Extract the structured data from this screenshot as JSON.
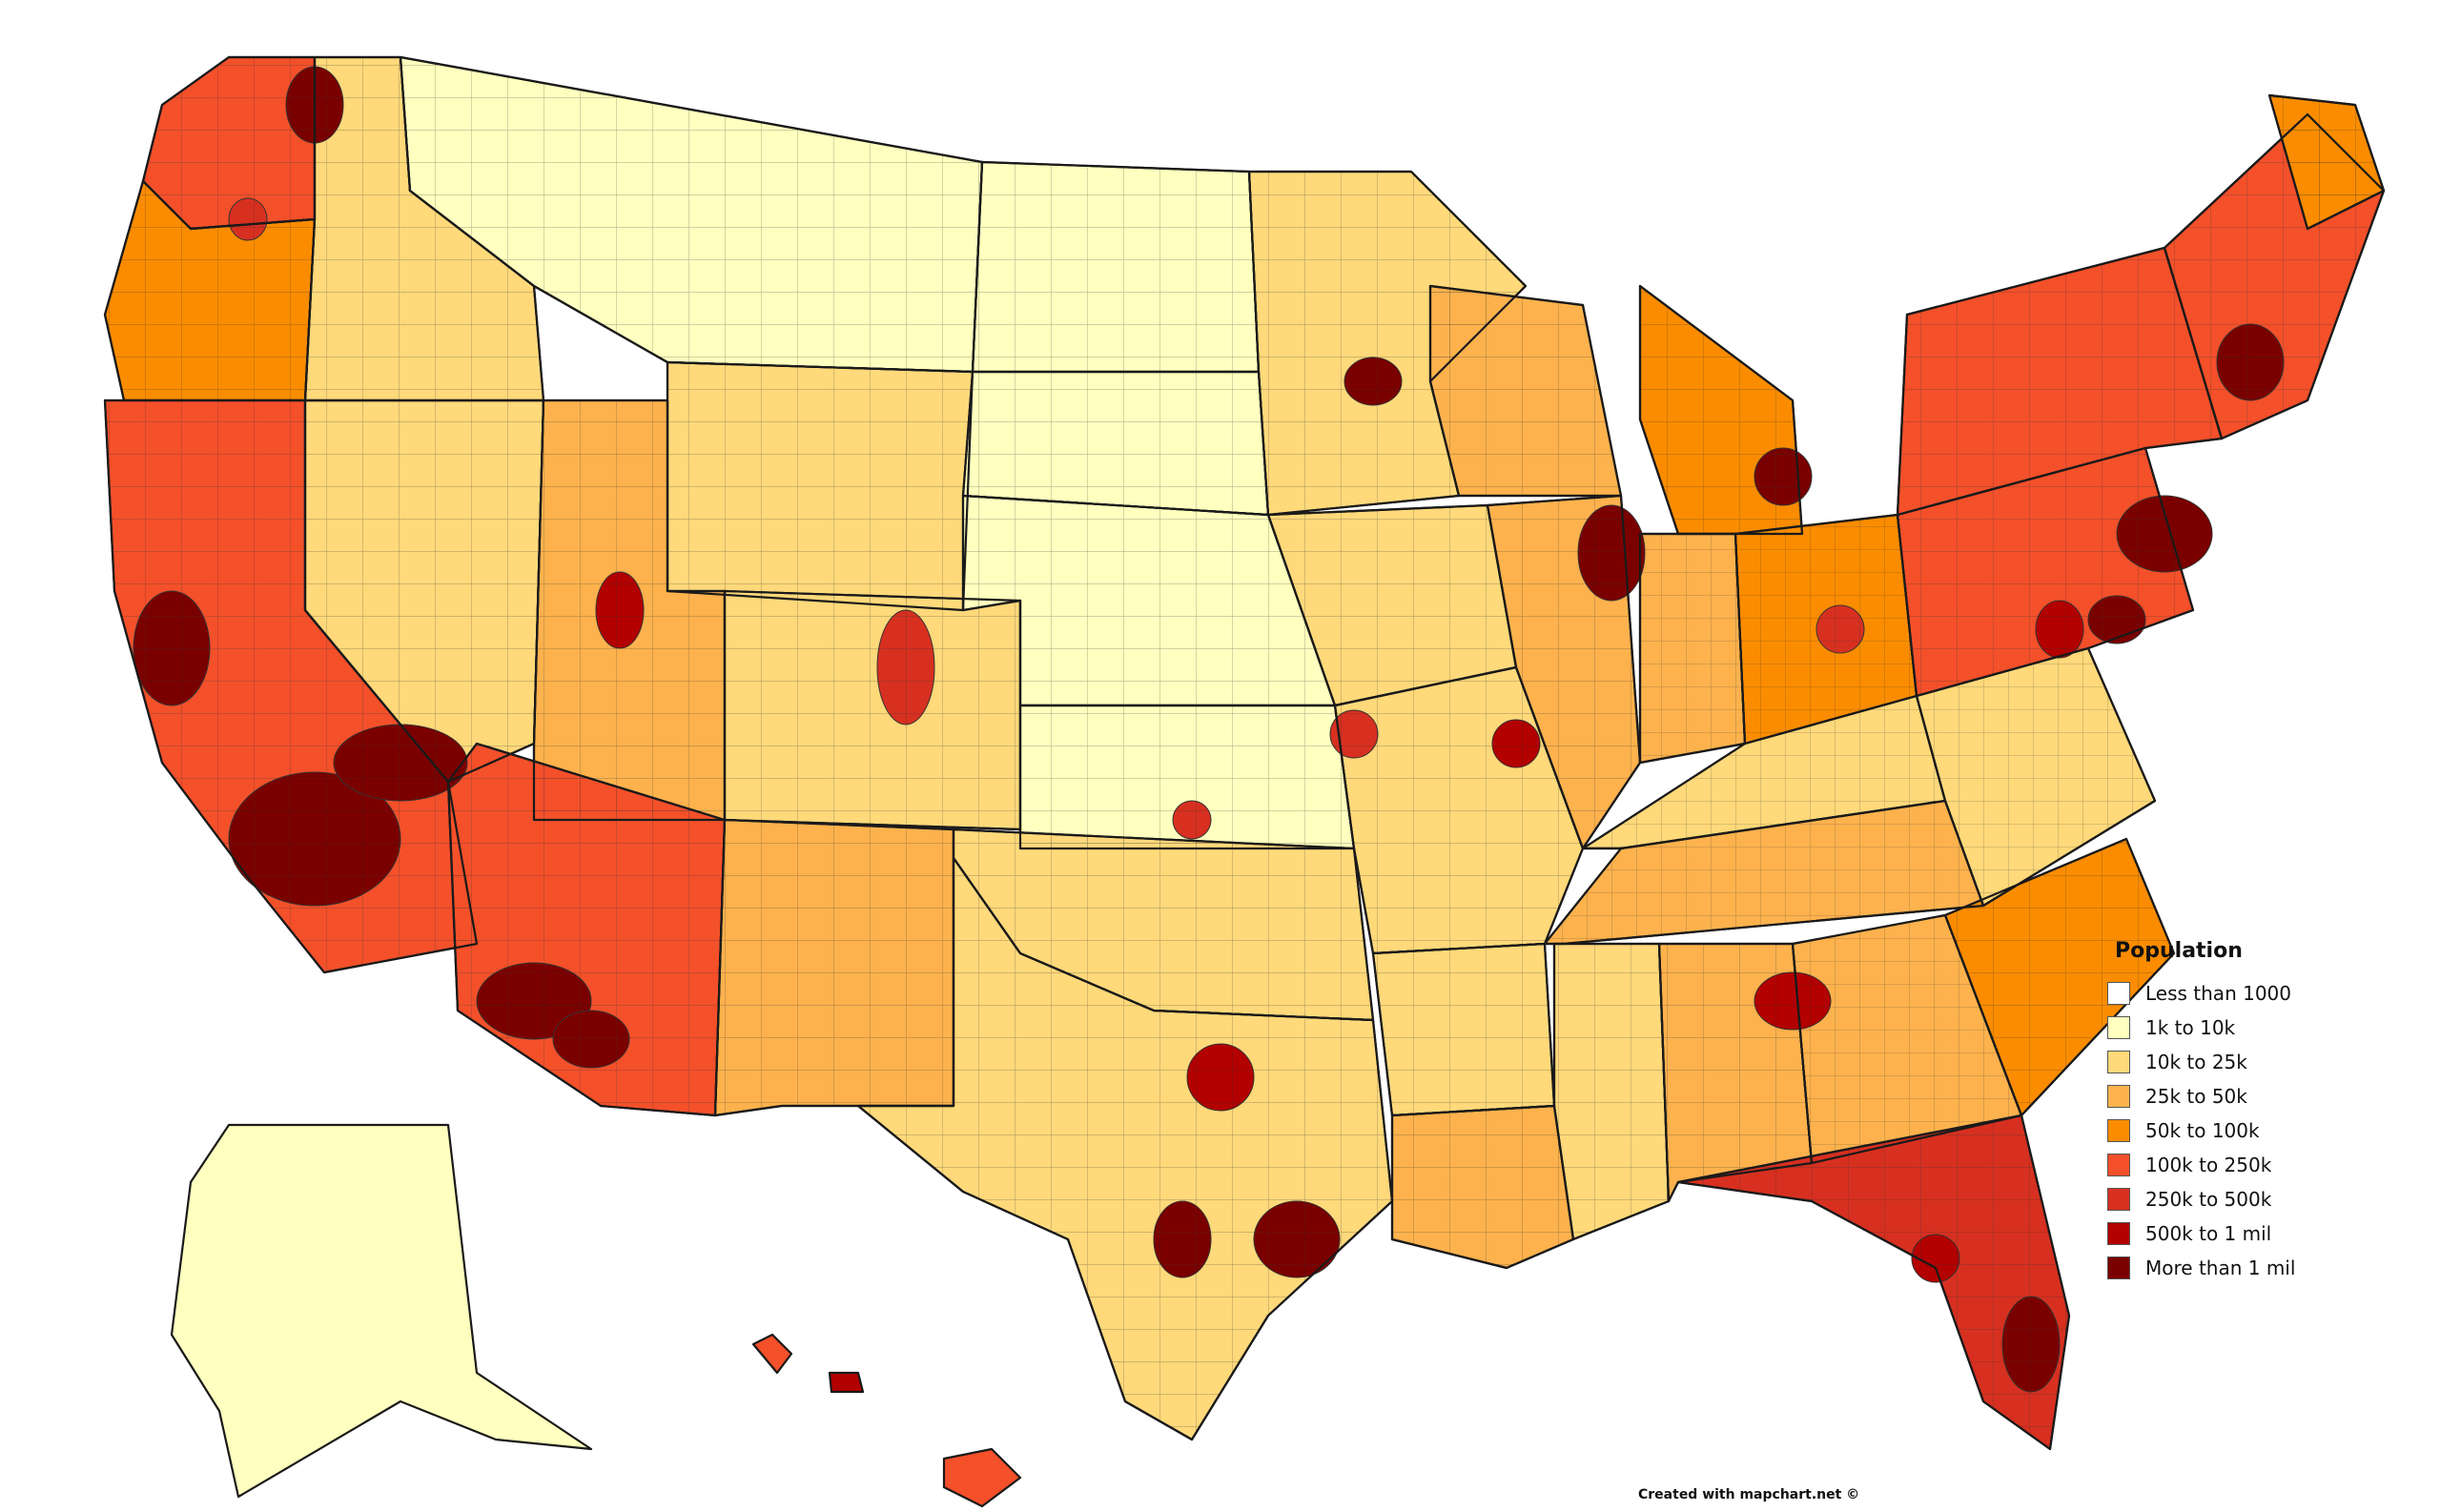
{
  "legend": {
    "title": "Population",
    "items": [
      {
        "label": "Less than 1000",
        "color": "#ffffff"
      },
      {
        "label": "1k to 10k",
        "color": "#ffffbf"
      },
      {
        "label": "10k to 25k",
        "color": "#ffd97a"
      },
      {
        "label": "25k to 50k",
        "color": "#fdb24d"
      },
      {
        "label": "50k to 100k",
        "color": "#fb8c00"
      },
      {
        "label": "100k to 250k",
        "color": "#f4502a"
      },
      {
        "label": "250k to 500k",
        "color": "#d73020"
      },
      {
        "label": "500k to 1 mil",
        "color": "#b30000"
      },
      {
        "label": "More than 1 mil",
        "color": "#7a0000"
      }
    ]
  },
  "credit": "Created with mapchart.net ©"
}
